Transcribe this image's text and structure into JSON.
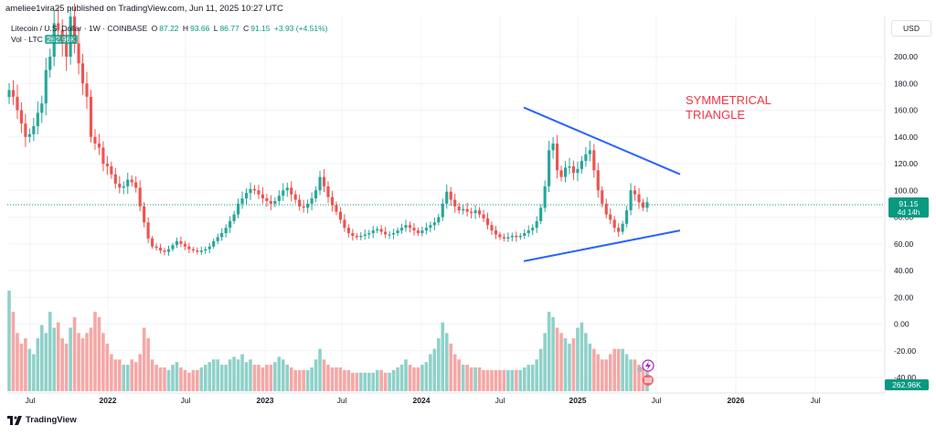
{
  "header": {
    "publisher": "ameliee1vira25 published on TradingView.com, Jun 11, 2025 10:27 UTC"
  },
  "legend": {
    "symbol": "Litecoin / U.S. Dollar · 1W · COINBASE",
    "o_label": "O",
    "o_value": "87.22",
    "h_label": "H",
    "h_value": "93.66",
    "l_label": "L",
    "l_value": "86.77",
    "c_label": "C",
    "c_value": "91.15",
    "change": "+3.93 (+4.51%)",
    "vol_label": "Vol · LTC",
    "vol_value": "262.96K"
  },
  "currency_button": "USD",
  "price_tag": {
    "value": "91.15",
    "countdown": "4d 14h"
  },
  "volume_tag": "262.96K",
  "annotation": {
    "line1": "SYMMETRICAL",
    "line2": "TRIANGLE"
  },
  "footer": {
    "brand": "TradingView"
  },
  "colors": {
    "up": "#26a69a",
    "down": "#ef5350",
    "vol_up": "#8fd1c9",
    "vol_down": "#f4a8a6",
    "trendline": "#2962ff",
    "annotation": "#f23645",
    "price_tag": "#089981"
  },
  "chart_data": {
    "type": "candlestick",
    "timeframe": "1W",
    "y_axis": {
      "ticks": [
        "200.00",
        "180.00",
        "160.00",
        "140.00",
        "120.00",
        "100.00",
        "80.00",
        "60.00",
        "40.00",
        "20.00",
        "0.00",
        "-20.00",
        "-40.00"
      ],
      "range": [
        -40,
        240
      ]
    },
    "x_axis": {
      "ticks": [
        "Jul",
        "2022",
        "Jul",
        "2023",
        "Jul",
        "2024",
        "Jul",
        "2025",
        "Jul",
        "2026",
        "Jul"
      ]
    },
    "close_series": [
      175,
      170,
      160,
      150,
      140,
      142,
      148,
      158,
      165,
      190,
      200,
      225,
      220,
      210,
      200,
      230,
      210,
      195,
      180,
      170,
      140,
      135,
      132,
      120,
      118,
      112,
      105,
      102,
      103,
      108,
      106,
      102,
      88,
      76,
      64,
      58,
      57,
      55,
      54,
      56,
      59,
      62,
      60,
      58,
      56,
      55,
      54,
      55,
      56,
      58,
      62,
      65,
      68,
      72,
      77,
      82,
      90,
      94,
      98,
      101,
      100,
      97,
      94,
      92,
      90,
      92,
      96,
      100,
      102,
      97,
      93,
      88,
      87,
      90,
      94,
      100,
      110,
      103,
      95,
      89,
      84,
      78,
      72,
      68,
      66,
      65,
      66,
      67,
      68,
      70,
      71,
      69,
      67,
      67,
      68,
      70,
      72,
      74,
      72,
      70,
      68,
      70,
      72,
      74,
      76,
      80,
      90,
      99,
      93,
      88,
      85,
      86,
      84,
      83,
      85,
      82,
      79,
      74,
      70,
      67,
      65,
      64,
      65,
      66,
      65,
      66,
      68,
      70,
      72,
      77,
      87,
      103,
      130,
      135,
      115,
      110,
      117,
      118,
      113,
      116,
      122,
      127,
      130,
      115,
      100,
      90,
      82,
      78,
      72,
      69,
      75,
      85,
      100,
      97,
      91,
      87,
      91.15
    ],
    "volume_series": [
      38,
      30,
      22,
      18,
      20,
      16,
      14,
      20,
      25,
      22,
      30,
      24,
      26,
      20,
      18,
      24,
      28,
      22,
      20,
      22,
      24,
      30,
      28,
      22,
      18,
      14,
      12,
      12,
      10,
      10,
      12,
      11,
      14,
      24,
      20,
      12,
      10,
      9,
      9,
      8,
      10,
      11,
      9,
      8,
      7,
      8,
      8,
      9,
      10,
      11,
      12,
      12,
      10,
      10,
      12,
      13,
      12,
      14,
      11,
      12,
      10,
      10,
      9,
      10,
      10,
      11,
      13,
      12,
      10,
      9,
      8,
      8,
      8,
      8,
      9,
      12,
      16,
      12,
      10,
      9,
      9,
      9,
      8,
      8,
      7,
      7,
      7,
      7,
      7,
      7,
      8,
      8,
      7,
      7,
      8,
      9,
      10,
      12,
      10,
      9,
      9,
      10,
      11,
      14,
      16,
      20,
      26,
      22,
      18,
      14,
      12,
      10,
      10,
      9,
      9,
      9,
      8,
      8,
      8,
      8,
      8,
      8,
      8,
      8,
      8,
      8,
      9,
      10,
      10,
      12,
      16,
      22,
      30,
      28,
      24,
      22,
      20,
      18,
      20,
      24,
      26,
      22,
      18,
      16,
      14,
      12,
      12,
      14,
      16,
      16,
      16,
      14,
      12,
      12,
      10,
      9,
      8
    ],
    "trendlines": [
      {
        "name": "upper",
        "from": {
          "x": "2024-07",
          "y": 162
        },
        "to": {
          "x": "2025-07",
          "y": 112
        }
      },
      {
        "name": "lower",
        "from": {
          "x": "2024-07",
          "y": 47
        },
        "to": {
          "x": "2025-07",
          "y": 70
        }
      }
    ],
    "last_price": 91.15,
    "last_volume": "262.96K",
    "grid": true
  }
}
